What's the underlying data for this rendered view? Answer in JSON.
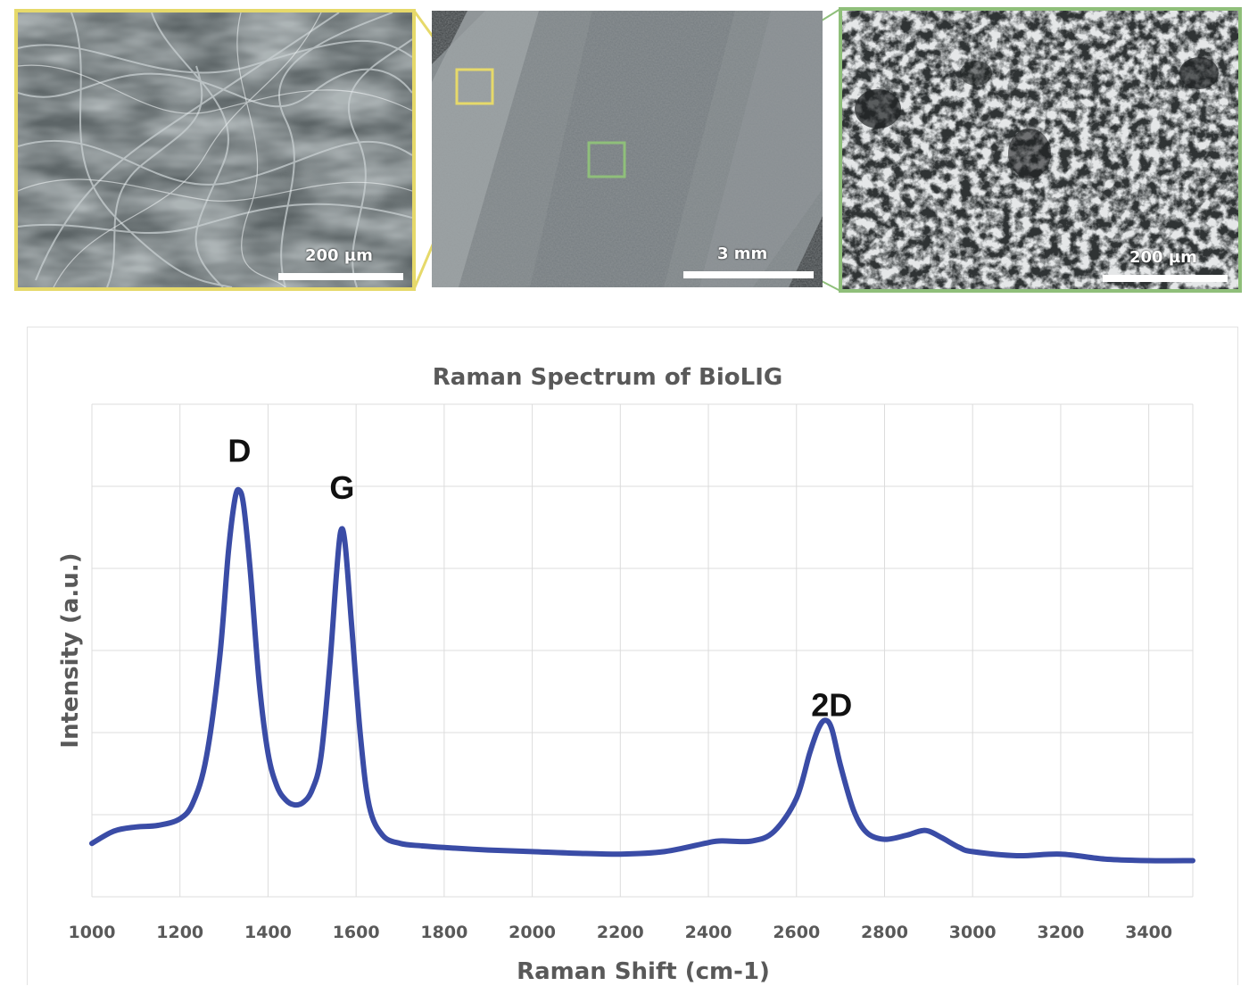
{
  "sem_images": {
    "left": {
      "scale_label": "200 µm",
      "frame_color": "#e6d96a",
      "texture": "fibrous network"
    },
    "center": {
      "scale_label": "3 mm",
      "texture": "porous strip"
    },
    "right": {
      "scale_label": "200 µm",
      "frame_color": "#8fbf7a",
      "texture": "porous foam"
    }
  },
  "chart_data": {
    "type": "line",
    "title": "Raman Spectrum of BioLIG",
    "xlabel": "Raman Shift (cm-1)",
    "ylabel": "Intensity (a.u.)",
    "xlim": [
      1000,
      3500
    ],
    "ylim": [
      0,
      6
    ],
    "x_ticks": [
      "1000",
      "1200",
      "1400",
      "1600",
      "1800",
      "2000",
      "2200",
      "2400",
      "2600",
      "2800",
      "3000",
      "3200",
      "3400"
    ],
    "show_y_tick_labels": false,
    "grid": true,
    "legend": "none",
    "series": [
      {
        "color": "#3a4ca6",
        "x": [
          1000,
          1050,
          1100,
          1150,
          1200,
          1230,
          1260,
          1290,
          1310,
          1325,
          1335,
          1345,
          1360,
          1380,
          1400,
          1420,
          1440,
          1460,
          1480,
          1500,
          1520,
          1540,
          1555,
          1565,
          1575,
          1590,
          1610,
          1630,
          1660,
          1700,
          1750,
          1800,
          1900,
          2000,
          2100,
          2200,
          2300,
          2400,
          2430,
          2500,
          2550,
          2600,
          2630,
          2650,
          2665,
          2680,
          2700,
          2730,
          2760,
          2800,
          2850,
          2880,
          2900,
          2930,
          2970,
          3000,
          3100,
          3200,
          3300,
          3400,
          3500
        ],
        "y": [
          0.65,
          0.8,
          0.85,
          0.87,
          0.95,
          1.15,
          1.7,
          2.9,
          4.2,
          4.85,
          4.95,
          4.75,
          3.95,
          2.6,
          1.75,
          1.35,
          1.18,
          1.12,
          1.15,
          1.3,
          1.7,
          2.8,
          3.9,
          4.45,
          4.3,
          3.3,
          1.95,
          1.1,
          0.75,
          0.65,
          0.62,
          0.6,
          0.57,
          0.55,
          0.53,
          0.52,
          0.55,
          0.66,
          0.68,
          0.68,
          0.8,
          1.2,
          1.75,
          2.05,
          2.15,
          2.05,
          1.6,
          1.05,
          0.78,
          0.7,
          0.75,
          0.8,
          0.8,
          0.72,
          0.6,
          0.55,
          0.5,
          0.52,
          0.46,
          0.44,
          0.44
        ]
      }
    ],
    "annotations": [
      {
        "text": "D",
        "x": 1335,
        "y": 5.3
      },
      {
        "text": "G",
        "x": 1568,
        "y": 4.85
      },
      {
        "text": "2D",
        "x": 2680,
        "y": 2.2
      }
    ]
  }
}
